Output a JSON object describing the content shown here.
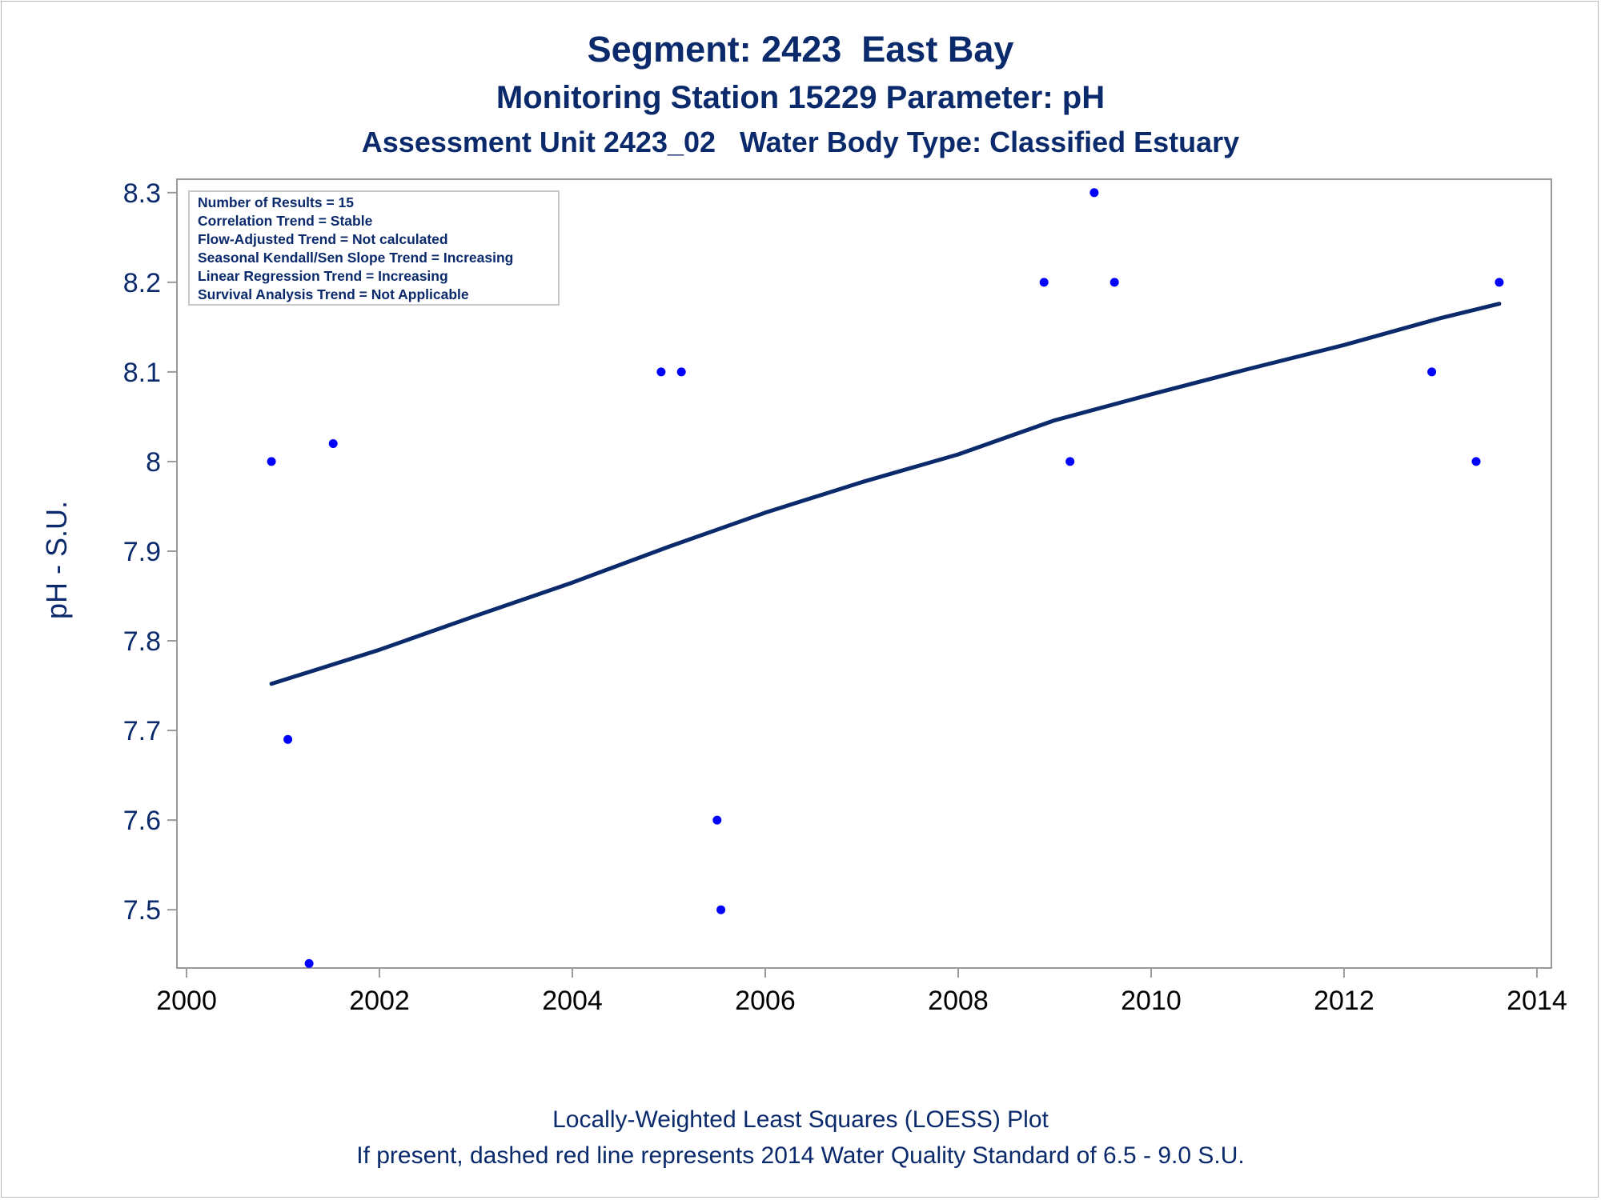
{
  "titles": {
    "line1": "Segment: 2423  East Bay",
    "line2": "Monitoring Station 15229 Parameter: pH",
    "line3": "Assessment Unit 2423_02   Water Body Type: Classified Estuary"
  },
  "footnotes": {
    "line1": "Locally-Weighted Least Squares (LOESS) Plot",
    "line2": "If present, dashed red line represents 2014 Water Quality Standard of 6.5 - 9.0 S.U."
  },
  "stats_box": [
    "Number of Results = 15",
    "Correlation Trend = Stable",
    "Flow-Adjusted Trend = Not calculated",
    "Seasonal Kendall/Sen Slope Trend = Increasing",
    "Linear Regression Trend = Increasing",
    "Survival Analysis Trend = Not Applicable"
  ],
  "colors": {
    "points": "#0000ff",
    "line": "#0a2a6c",
    "text": "#0a2a6c",
    "axis": "#9a9a9a"
  },
  "chart_data": {
    "type": "scatter",
    "title": "Segment: 2423  East Bay",
    "xlabel": "",
    "ylabel": "pH - S.U.",
    "xlim": [
      1999.9,
      2014.15
    ],
    "ylim": [
      7.435,
      8.315
    ],
    "x_ticks": [
      2000,
      2002,
      2004,
      2006,
      2008,
      2010,
      2012,
      2014
    ],
    "x_tick_labels": [
      "2000",
      "2002",
      "2004",
      "2006",
      "2008",
      "2010",
      "2012",
      "2014"
    ],
    "y_ticks": [
      7.5,
      7.6,
      7.7,
      7.8,
      7.9,
      8.0,
      8.1,
      8.2,
      8.3
    ],
    "y_tick_labels": [
      "7.5",
      "7.6",
      "7.7",
      "7.8",
      "7.9",
      "8",
      "8.1",
      "8.2",
      "8.3"
    ],
    "grid": false,
    "points": [
      {
        "x": 2000.88,
        "y": 8.0
      },
      {
        "x": 2001.05,
        "y": 7.69
      },
      {
        "x": 2001.27,
        "y": 7.44
      },
      {
        "x": 2001.52,
        "y": 8.02
      },
      {
        "x": 2004.92,
        "y": 8.1
      },
      {
        "x": 2005.13,
        "y": 8.1
      },
      {
        "x": 2005.5,
        "y": 7.6
      },
      {
        "x": 2005.54,
        "y": 7.5
      },
      {
        "x": 2008.89,
        "y": 8.2
      },
      {
        "x": 2009.16,
        "y": 8.0
      },
      {
        "x": 2009.41,
        "y": 8.3
      },
      {
        "x": 2009.62,
        "y": 8.2
      },
      {
        "x": 2012.91,
        "y": 8.1
      },
      {
        "x": 2013.37,
        "y": 8.0
      },
      {
        "x": 2013.61,
        "y": 8.2
      }
    ],
    "loess_line": {
      "x": [
        2000.88,
        2001.5,
        2002.0,
        2003.0,
        2004.0,
        2005.0,
        2006.0,
        2007.0,
        2008.0,
        2009.0,
        2010.0,
        2011.0,
        2012.0,
        2013.0,
        2013.61
      ],
      "y": [
        7.752,
        7.773,
        7.79,
        7.828,
        7.865,
        7.905,
        7.943,
        7.977,
        8.008,
        8.046,
        8.075,
        8.103,
        8.13,
        8.16,
        8.176
      ]
    }
  }
}
